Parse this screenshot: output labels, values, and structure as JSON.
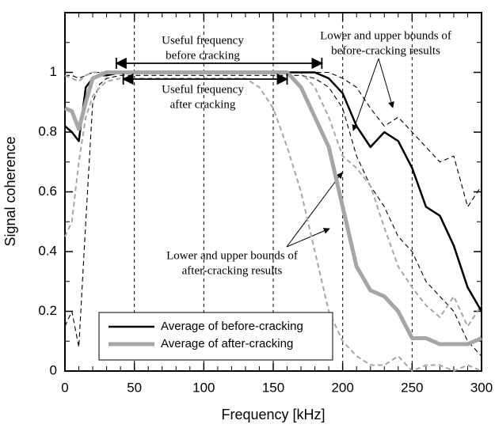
{
  "chart_data": {
    "type": "line",
    "x_label": "Frequency [kHz]",
    "y_label": "Signal coherence",
    "x": [
      0,
      5,
      10,
      15,
      20,
      25,
      30,
      40,
      50,
      60,
      70,
      80,
      90,
      100,
      110,
      120,
      130,
      140,
      150,
      160,
      170,
      180,
      190,
      200,
      210,
      220,
      230,
      240,
      250,
      260,
      270,
      280,
      290,
      300
    ],
    "series": [
      {
        "name": "Average of before-cracking",
        "color": "#000000",
        "style": "solid",
        "width": 2.5,
        "values": [
          0.82,
          0.8,
          0.77,
          0.95,
          0.98,
          0.99,
          0.99,
          1.0,
          1.0,
          1.0,
          1.0,
          1.0,
          1.0,
          1.0,
          1.0,
          1.0,
          1.0,
          1.0,
          1.0,
          1.0,
          1.0,
          1.0,
          0.98,
          0.93,
          0.82,
          0.75,
          0.8,
          0.77,
          0.68,
          0.55,
          0.52,
          0.42,
          0.28,
          0.2
        ]
      },
      {
        "name": "Average of after-cracking",
        "color": "#a6a6a6",
        "style": "solid",
        "width": 5,
        "values": [
          0.88,
          0.87,
          0.81,
          0.9,
          0.98,
          0.99,
          1.0,
          1.0,
          1.0,
          1.0,
          1.0,
          1.0,
          1.0,
          1.0,
          1.0,
          1.0,
          1.0,
          1.0,
          1.0,
          1.0,
          0.95,
          0.85,
          0.75,
          0.55,
          0.35,
          0.27,
          0.25,
          0.2,
          0.11,
          0.11,
          0.09,
          0.09,
          0.09,
          0.11
        ]
      },
      {
        "color": "#000000",
        "style": "dashed",
        "width": 1.1,
        "values": [
          0.15,
          0.2,
          0.08,
          0.5,
          0.9,
          0.96,
          0.98,
          0.99,
          0.99,
          0.99,
          0.99,
          0.99,
          0.99,
          0.99,
          0.99,
          0.99,
          0.99,
          0.99,
          0.99,
          0.99,
          0.99,
          0.98,
          0.95,
          0.88,
          0.72,
          0.62,
          0.55,
          0.45,
          0.4,
          0.3,
          0.25,
          0.2,
          0.1,
          0.05
        ]
      },
      {
        "color": "#000000",
        "style": "dashed",
        "width": 1.1,
        "values": [
          0.99,
          0.99,
          0.98,
          0.99,
          1.0,
          1.0,
          1.0,
          1.0,
          1.0,
          1.0,
          1.0,
          1.0,
          1.0,
          1.0,
          1.0,
          1.0,
          1.0,
          1.0,
          1.0,
          1.0,
          1.0,
          1.0,
          1.0,
          0.98,
          0.95,
          0.88,
          0.82,
          0.85,
          0.8,
          0.75,
          0.7,
          0.72,
          0.55,
          0.62
        ]
      },
      {
        "color": "#a6a6a6",
        "style": "dashed",
        "width": 2,
        "values": [
          0.45,
          0.5,
          0.7,
          0.85,
          0.92,
          0.95,
          0.97,
          0.98,
          0.98,
          0.98,
          0.98,
          0.98,
          0.98,
          0.98,
          0.98,
          0.98,
          0.98,
          0.95,
          0.88,
          0.75,
          0.6,
          0.4,
          0.2,
          0.1,
          0.05,
          0.02,
          0.02,
          0.05,
          0.0,
          0.02,
          0.02,
          0.0,
          0.02,
          0.0
        ]
      },
      {
        "color": "#a6a6a6",
        "style": "dashed",
        "width": 2,
        "values": [
          0.99,
          0.98,
          0.97,
          0.99,
          1.0,
          1.0,
          1.0,
          1.0,
          1.0,
          1.0,
          1.0,
          1.0,
          1.0,
          1.0,
          1.0,
          1.0,
          1.0,
          1.0,
          1.0,
          1.0,
          1.0,
          0.95,
          0.85,
          0.72,
          0.68,
          0.62,
          0.48,
          0.35,
          0.28,
          0.22,
          0.18,
          0.25,
          0.15,
          0.22
        ]
      }
    ],
    "xlim": [
      0,
      300
    ],
    "xticks": [
      0,
      50,
      100,
      150,
      200,
      250,
      300
    ],
    "ylim": [
      0,
      1.2
    ],
    "yticks": [
      0,
      0.2,
      0.4,
      0.6,
      0.8,
      1
    ],
    "grid": "x",
    "legend": "lower left",
    "annotations": [
      {
        "lines": [
          "Useful frequency",
          "before cracking"
        ],
        "range": [
          37,
          185
        ]
      },
      {
        "lines": [
          "Useful frequency",
          "after cracking"
        ],
        "range": [
          42,
          160
        ]
      },
      {
        "lines": [
          "Lower and upper bounds of",
          "before-cracking results"
        ]
      },
      {
        "lines": [
          "Lower and upper bounds of",
          "after-cracking results"
        ]
      }
    ]
  }
}
